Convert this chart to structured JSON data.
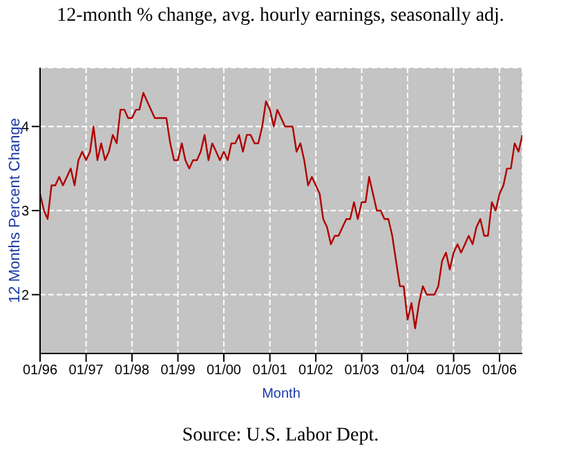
{
  "chart_data": {
    "type": "line",
    "title": "12-month % change, avg. hourly earnings, seasonally adj.",
    "xlabel": "Month",
    "ylabel": "12 Months Percent Change",
    "annotations": [
      "Source: U.S. Labor Dept."
    ],
    "x": [
      "1996-01",
      "1996-02",
      "1996-03",
      "1996-04",
      "1996-05",
      "1996-06",
      "1996-07",
      "1996-08",
      "1996-09",
      "1996-10",
      "1996-11",
      "1996-12",
      "1997-01",
      "1997-02",
      "1997-03",
      "1997-04",
      "1997-05",
      "1997-06",
      "1997-07",
      "1997-08",
      "1997-09",
      "1997-10",
      "1997-11",
      "1997-12",
      "1998-01",
      "1998-02",
      "1998-03",
      "1998-04",
      "1998-05",
      "1998-06",
      "1998-07",
      "1998-08",
      "1998-09",
      "1998-10",
      "1998-11",
      "1998-12",
      "1999-01",
      "1999-02",
      "1999-03",
      "1999-04",
      "1999-05",
      "1999-06",
      "1999-07",
      "1999-08",
      "1999-09",
      "1999-10",
      "1999-11",
      "1999-12",
      "2000-01",
      "2000-02",
      "2000-03",
      "2000-04",
      "2000-05",
      "2000-06",
      "2000-07",
      "2000-08",
      "2000-09",
      "2000-10",
      "2000-11",
      "2000-12",
      "2001-01",
      "2001-02",
      "2001-03",
      "2001-04",
      "2001-05",
      "2001-06",
      "2001-07",
      "2001-08",
      "2001-09",
      "2001-10",
      "2001-11",
      "2001-12",
      "2002-01",
      "2002-02",
      "2002-03",
      "2002-04",
      "2002-05",
      "2002-06",
      "2002-07",
      "2002-08",
      "2002-09",
      "2002-10",
      "2002-11",
      "2002-12",
      "2003-01",
      "2003-02",
      "2003-03",
      "2003-04",
      "2003-05",
      "2003-06",
      "2003-07",
      "2003-08",
      "2003-09",
      "2003-10",
      "2003-11",
      "2003-12",
      "2004-01",
      "2004-02",
      "2004-03",
      "2004-04",
      "2004-05",
      "2004-06",
      "2004-07",
      "2004-08",
      "2004-09",
      "2004-10",
      "2004-11",
      "2004-12",
      "2005-01",
      "2005-02",
      "2005-03",
      "2005-04",
      "2005-05",
      "2005-06",
      "2005-07",
      "2005-08",
      "2005-09",
      "2005-10",
      "2005-11",
      "2005-12",
      "2006-01",
      "2006-02",
      "2006-03",
      "2006-04",
      "2006-05",
      "2006-06",
      "2006-07"
    ],
    "series": [
      {
        "color": "#b00000",
        "values": [
          3.2,
          3.0,
          2.9,
          3.3,
          3.3,
          3.4,
          3.3,
          3.4,
          3.5,
          3.3,
          3.6,
          3.7,
          3.6,
          3.7,
          4.0,
          3.6,
          3.8,
          3.6,
          3.7,
          3.9,
          3.8,
          4.2,
          4.2,
          4.1,
          4.1,
          4.2,
          4.2,
          4.4,
          4.3,
          4.2,
          4.1,
          4.1,
          4.1,
          4.1,
          3.8,
          3.6,
          3.6,
          3.8,
          3.6,
          3.5,
          3.6,
          3.6,
          3.7,
          3.9,
          3.6,
          3.8,
          3.7,
          3.6,
          3.7,
          3.6,
          3.8,
          3.8,
          3.9,
          3.7,
          3.9,
          3.9,
          3.8,
          3.8,
          4.0,
          4.3,
          4.2,
          4.0,
          4.2,
          4.1,
          4.0,
          4.0,
          4.0,
          3.7,
          3.8,
          3.6,
          3.3,
          3.4,
          3.3,
          3.2,
          2.9,
          2.8,
          2.6,
          2.7,
          2.7,
          2.8,
          2.9,
          2.9,
          3.1,
          2.9,
          3.1,
          3.1,
          3.4,
          3.2,
          3.0,
          3.0,
          2.9,
          2.9,
          2.7,
          2.4,
          2.1,
          2.1,
          1.7,
          1.9,
          1.6,
          1.9,
          2.1,
          2.0,
          2.0,
          2.0,
          2.1,
          2.4,
          2.5,
          2.3,
          2.5,
          2.6,
          2.5,
          2.6,
          2.7,
          2.6,
          2.8,
          2.9,
          2.7,
          2.7,
          3.1,
          3.0,
          3.2,
          3.3,
          3.5,
          3.5,
          3.8,
          3.7,
          3.9
        ]
      }
    ],
    "xlim": [
      "1996-01",
      "2006-07"
    ],
    "xticks": [
      {
        "value": "1996-01",
        "label": "01/96"
      },
      {
        "value": "1997-01",
        "label": "01/97"
      },
      {
        "value": "1998-01",
        "label": "01/98"
      },
      {
        "value": "1999-01",
        "label": "01/99"
      },
      {
        "value": "2000-01",
        "label": "01/00"
      },
      {
        "value": "2001-01",
        "label": "01/01"
      },
      {
        "value": "2002-01",
        "label": "01/02"
      },
      {
        "value": "2003-01",
        "label": "01/03"
      },
      {
        "value": "2004-01",
        "label": "01/04"
      },
      {
        "value": "2005-01",
        "label": "01/05"
      },
      {
        "value": "2006-01",
        "label": "01/06"
      }
    ],
    "ylim": [
      1.3,
      4.7
    ],
    "yticks": [
      2,
      3,
      4
    ],
    "grid": true,
    "marker": "none",
    "line_style": "solid",
    "legend": false
  }
}
